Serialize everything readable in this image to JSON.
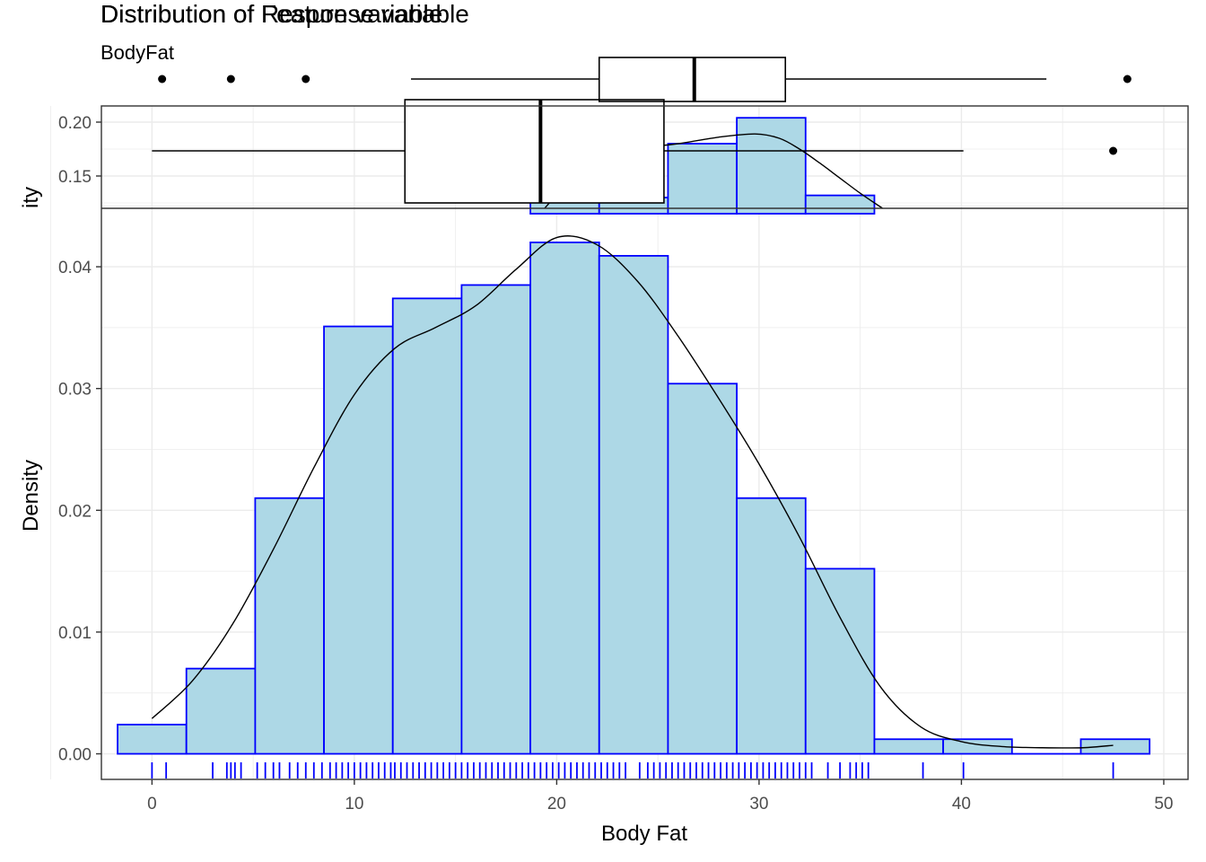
{
  "title_primary": "Distribution of Response variable",
  "title_overlap": "Distribution of Feature variable",
  "subtitle": "BodyFat",
  "colors": {
    "bar_fill": "#ADD8E6",
    "bar_stroke": "#0000FF",
    "rug": "#0000FF",
    "grid": "#EBEBEB",
    "density_line": "#000000"
  },
  "chart_data": {
    "type": "bar",
    "xlabel": "Body Fat",
    "ylabel": "Density",
    "upper_panel_ylabel": "ity",
    "xlim": [
      -2.5,
      51.2
    ],
    "ylim": [
      -0.0021,
      0.0448
    ],
    "x_ticks": [
      0,
      10,
      20,
      30,
      40,
      50
    ],
    "x_tick_labels": [
      "0",
      "10",
      "20",
      "30",
      "40",
      "50"
    ],
    "y_ticks": [
      0.0,
      0.01,
      0.02,
      0.03,
      0.04
    ],
    "y_tick_labels": [
      "0.00",
      "0.01",
      "0.02",
      "0.03",
      "0.04"
    ],
    "upper_panel_y_ticks": [
      0.15,
      0.2
    ],
    "upper_panel_y_tick_labels": [
      "0.15",
      "0.20"
    ],
    "upper_panel_ylim": [
      0.12,
      0.215
    ],
    "grid": true,
    "histogram": {
      "bin_edges": [
        -1.7,
        1.7,
        5.1,
        8.5,
        11.9,
        15.3,
        18.7,
        22.1,
        25.5,
        28.9,
        32.3,
        35.7,
        39.1,
        42.5,
        45.9,
        49.3
      ],
      "densities": [
        0.0024,
        0.007,
        0.021,
        0.0351,
        0.0374,
        0.0385,
        0.042,
        0.0409,
        0.0304,
        0.021,
        0.0152,
        0.0012,
        0.0012,
        0.0,
        0.0012
      ]
    },
    "density_curve": {
      "x": [
        0,
        2,
        4,
        6,
        8,
        10,
        12,
        14,
        16,
        18,
        20,
        22,
        24,
        26,
        28,
        30,
        32,
        34,
        36,
        38,
        40,
        42,
        44,
        46,
        47.5
      ],
      "y": [
        0.0029,
        0.006,
        0.0107,
        0.0168,
        0.0235,
        0.0295,
        0.0333,
        0.035,
        0.0368,
        0.0398,
        0.0424,
        0.0418,
        0.0388,
        0.0343,
        0.0292,
        0.0238,
        0.0178,
        0.0112,
        0.0055,
        0.0022,
        0.001,
        0.0006,
        0.0005,
        0.0005,
        0.0007
      ]
    },
    "upper_panel": {
      "bars": [
        {
          "x0": 18.7,
          "x1": 22.1,
          "density": 0.128
        },
        {
          "x0": 22.1,
          "x1": 25.5,
          "density": 0.13
        },
        {
          "x0": 25.5,
          "x1": 28.9,
          "density": 0.18
        },
        {
          "x0": 28.9,
          "x1": 32.3,
          "density": 0.204
        },
        {
          "x0": 32.3,
          "x1": 35.7,
          "density": 0.132
        }
      ],
      "density_curve": {
        "x": [
          19.4,
          22,
          24,
          26,
          28,
          29.8,
          31,
          32,
          33,
          34,
          35,
          36.1
        ],
        "y": [
          0.12,
          0.172,
          0.176,
          0.18,
          0.186,
          0.189,
          0.185,
          0.175,
          0.162,
          0.148,
          0.134,
          0.12
        ]
      }
    },
    "boxplot_large": {
      "whisker_low": 0.0,
      "q1": 12.5,
      "median": 19.2,
      "q3": 25.3,
      "whisker_high": 40.1,
      "outliers": [
        47.5
      ]
    },
    "boxplot_small": {
      "whisker_low": 12.8,
      "q1": 22.1,
      "median": 26.8,
      "q3": 31.3,
      "whisker_high": 44.2,
      "outliers": [
        0.5,
        3.9,
        7.6,
        48.2
      ]
    },
    "rug": [
      0,
      0.7,
      3.0,
      3.7,
      3.9,
      4.1,
      4.4,
      5.2,
      5.6,
      6.0,
      6.3,
      6.8,
      7.2,
      7.6,
      8.0,
      8.4,
      8.8,
      9.1,
      9.4,
      9.7,
      10.0,
      10.3,
      10.6,
      10.9,
      11.2,
      11.5,
      11.8,
      12.0,
      12.3,
      12.6,
      12.9,
      13.2,
      13.5,
      13.8,
      14.1,
      14.4,
      14.7,
      15.0,
      15.3,
      15.6,
      15.9,
      16.2,
      16.5,
      16.8,
      17.1,
      17.4,
      17.7,
      18.0,
      18.3,
      18.6,
      18.9,
      19.2,
      19.5,
      19.8,
      20.1,
      20.4,
      20.7,
      21.0,
      21.3,
      21.6,
      21.9,
      22.2,
      22.5,
      22.8,
      23.1,
      23.4,
      24.1,
      24.5,
      24.8,
      25.1,
      25.4,
      25.7,
      26.0,
      26.3,
      26.6,
      26.9,
      27.2,
      27.5,
      27.8,
      28.1,
      28.4,
      28.7,
      29.0,
      29.3,
      29.6,
      29.9,
      30.2,
      30.5,
      30.8,
      31.1,
      31.4,
      31.7,
      32.0,
      32.3,
      32.6,
      33.4,
      34.0,
      34.5,
      34.8,
      35.1,
      35.4,
      38.1,
      40.1,
      47.5
    ]
  }
}
